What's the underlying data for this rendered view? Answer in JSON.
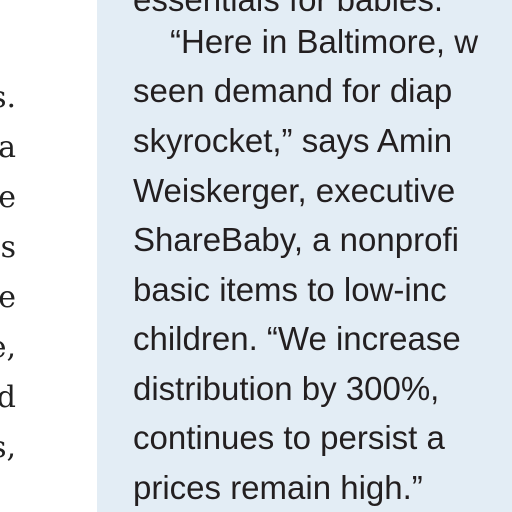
{
  "left_column": {
    "line_endings": [
      "s.",
      "a",
      "e",
      "s",
      "e",
      "e,",
      "d",
      "s,"
    ]
  },
  "sidebar": {
    "background": "#e3edf5",
    "lines": [
      "essentials for babies.",
      "“Here in Baltimore, w",
      "seen demand for diap",
      "skyrocket,” says Amin",
      "Weiskerger, executive",
      "ShareBaby, a nonprofi",
      "basic items to low-inc",
      "children. “We increase",
      "distribution by 300%,",
      "continues to persist a",
      "prices remain high.”"
    ]
  }
}
